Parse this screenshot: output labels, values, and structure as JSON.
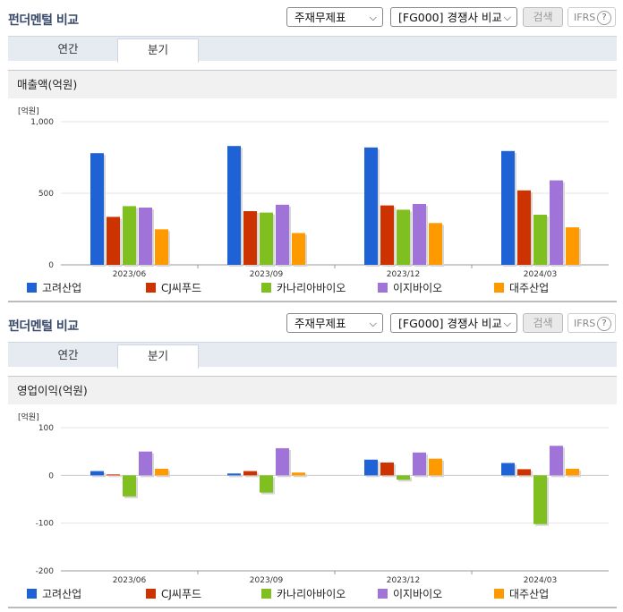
{
  "panels": [
    {
      "title": "펀더멘털 비교",
      "select1": "주재무제표",
      "select2": "[FG000] 경쟁사 비교",
      "search_label": "검색",
      "ifrs_label": "IFRS",
      "help_icon": "?",
      "tabs": [
        "연간",
        "분기"
      ],
      "active_tab": "분기",
      "section_title": "매출액(억원)"
    },
    {
      "title": "펀더멘털 비교",
      "select1": "주재무제표",
      "select2": "[FG000] 경쟁사 비교",
      "search_label": "검색",
      "ifrs_label": "IFRS",
      "help_icon": "?",
      "tabs": [
        "연간",
        "분기"
      ],
      "active_tab": "분기",
      "section_title": "영업이익(억원)"
    }
  ],
  "chart_data": [
    {
      "type": "bar",
      "unit_label": "[억원]",
      "categories": [
        "2023/06",
        "2023/09",
        "2023/12",
        "2024/03"
      ],
      "ylim": [
        0,
        1000
      ],
      "yticks": [
        0,
        500,
        1000
      ],
      "ytick_labels": [
        "0",
        "500",
        "1,000"
      ],
      "legend_position": "bottom",
      "series": [
        {
          "name": "고려산업",
          "color": "#1f62d6",
          "values": [
            780,
            830,
            820,
            795
          ]
        },
        {
          "name": "CJ씨푸드",
          "color": "#cc3300",
          "values": [
            335,
            375,
            415,
            520
          ]
        },
        {
          "name": "카나리아바이오",
          "color": "#7fbf1f",
          "values": [
            410,
            365,
            385,
            350
          ]
        },
        {
          "name": "이지바이오",
          "color": "#a073d9",
          "values": [
            400,
            420,
            425,
            590
          ]
        },
        {
          "name": "대주산업",
          "color": "#ff9900",
          "values": [
            248,
            222,
            292,
            262
          ]
        }
      ]
    },
    {
      "type": "bar",
      "unit_label": "[억원]",
      "categories": [
        "2023/06",
        "2023/09",
        "2023/12",
        "2024/03"
      ],
      "ylim": [
        -200,
        100
      ],
      "yticks": [
        -200,
        -100,
        0,
        100
      ],
      "ytick_labels": [
        "-200",
        "-100",
        "0",
        "100"
      ],
      "legend_position": "bottom",
      "series": [
        {
          "name": "고려산업",
          "color": "#1f62d6",
          "values": [
            9,
            4,
            33,
            26
          ]
        },
        {
          "name": "CJ씨푸드",
          "color": "#cc3300",
          "values": [
            2,
            9,
            27,
            13
          ]
        },
        {
          "name": "카나리아바이오",
          "color": "#7fbf1f",
          "values": [
            -44,
            -36,
            -9,
            -102
          ]
        },
        {
          "name": "이지바이오",
          "color": "#a073d9",
          "values": [
            50,
            57,
            48,
            62
          ]
        },
        {
          "name": "대주산업",
          "color": "#ff9900",
          "values": [
            14,
            6,
            35,
            14
          ]
        }
      ]
    }
  ]
}
